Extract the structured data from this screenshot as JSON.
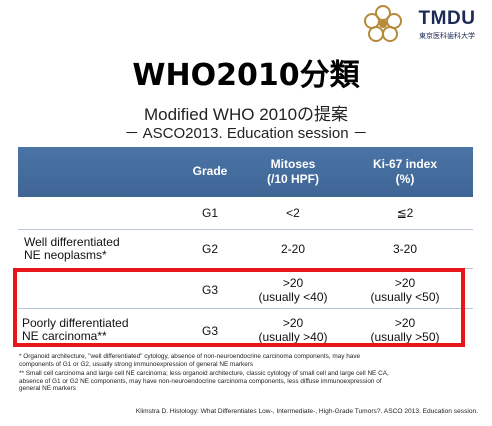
{
  "brand": {
    "name": "TMDU",
    "subtitle": "東京医科歯科大学"
  },
  "slide": {
    "title": "WHO2010分類",
    "subtitle_line1": "Modified WHO 2010の提案",
    "subtitle_line2": "－ ASCO2013. Education session －"
  },
  "table": {
    "headers": {
      "grade": "Grade",
      "mitoses_line1": "Mitoses",
      "mitoses_line2": "(/10 HPF)",
      "ki67_line1": "Ki-67 index",
      "ki67_line2": "(%)"
    },
    "rows": [
      {
        "label_line1": "",
        "label_line2": "",
        "grade": "G1",
        "mitoses_line1": "<2",
        "mitoses_line2": "",
        "ki67_line1": "≦2",
        "ki67_line2": ""
      },
      {
        "label_line1": "Well differentiated",
        "label_line2": "NE neoplasms*",
        "grade": "G2",
        "mitoses_line1": "2-20",
        "mitoses_line2": "",
        "ki67_line1": "3-20",
        "ki67_line2": ""
      },
      {
        "label_line1": "",
        "label_line2": "",
        "grade": "G3",
        "mitoses_line1": ">20",
        "mitoses_line2": "(usually <40)",
        "ki67_line1": ">20",
        "ki67_line2": "(usually <50)"
      },
      {
        "label_line1": "Poorly differentiated",
        "label_line2": "NE carcinoma**",
        "grade": "G3",
        "mitoses_line1": ">20",
        "mitoses_line2": "(usually >40)",
        "ki67_line1": ">20",
        "ki67_line2": "(usually >50)"
      }
    ]
  },
  "footnotes": {
    "note1_line1": "*  Organoid architecture, \"well differentiated\" cytology, absence of non-neuroendocrine carcinoma components, may have",
    "note1_line2": "components of G1 or G2, usually strong immunoexpression of general NE markers",
    "note2_line1": "** Small cell carcinoma and large cell NE carcinoma; less organoid architecture, classic cytology of small cell and large cell NE CA,",
    "note2_line2": "absence of G1 or G2 NE components, may have non-neuroendocrine carcinoma components, less diffuse immunoexpression of",
    "note2_line3": "general NE markers"
  },
  "citation": "Klimstra D. Histology: What Differentiates Low-, Intermediate-, High-Grade Tumors?. ASCO 2013. Education session.",
  "colors": {
    "header_band": "#4a74a6",
    "highlight_border": "#e8151b",
    "brand": "#1c2a55"
  }
}
